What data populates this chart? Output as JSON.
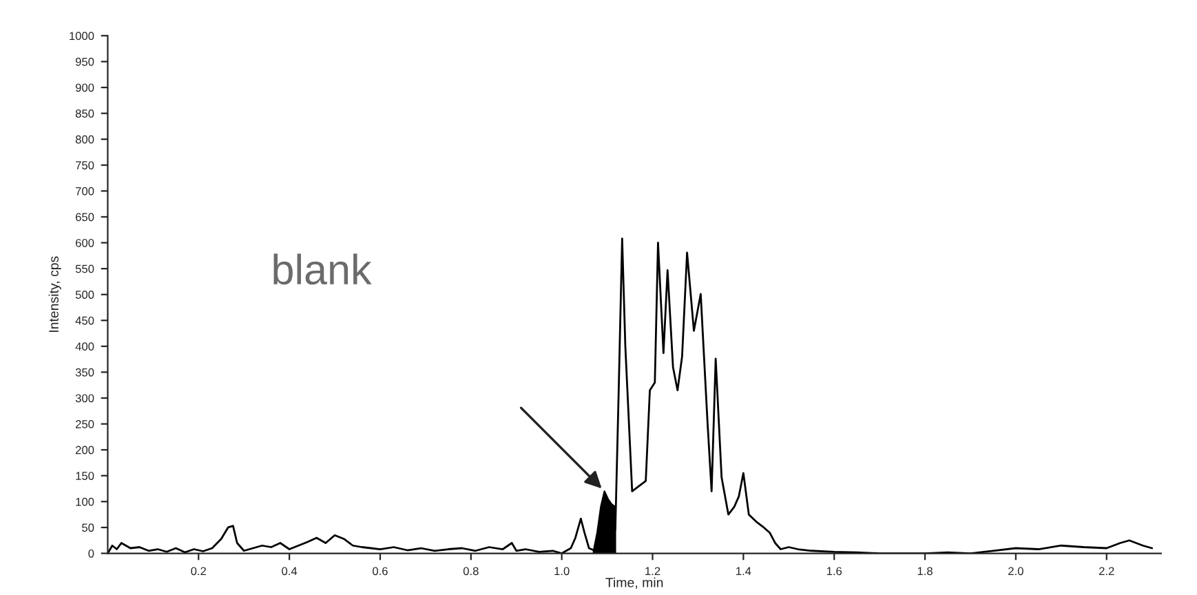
{
  "chart_data": {
    "type": "line",
    "xlabel": "Time, min",
    "ylabel": "Intensity, cps",
    "annotations": [
      "blank"
    ],
    "xlim": [
      0,
      2.32
    ],
    "ylim": [
      0,
      1000
    ],
    "xticks": [
      0.2,
      0.4,
      0.6,
      0.8,
      {
        "value": 1,
        "label": "1.0"
      },
      1.2,
      1.4,
      1.6,
      1.8,
      {
        "value": 2,
        "label": "2.0"
      },
      2.2
    ],
    "yticks": [
      0,
      50,
      100,
      150,
      200,
      250,
      300,
      350,
      400,
      450,
      500,
      550,
      600,
      650,
      700,
      750,
      800,
      850,
      900,
      950,
      1000
    ],
    "grid": false,
    "legend": false,
    "series": [
      {
        "color": "#000000",
        "x": [
          0.0,
          0.01,
          0.02,
          0.03,
          0.05,
          0.07,
          0.09,
          0.11,
          0.13,
          0.15,
          0.17,
          0.19,
          0.21,
          0.23,
          0.25,
          0.265,
          0.276,
          0.285,
          0.3,
          0.32,
          0.34,
          0.36,
          0.38,
          0.4,
          0.42,
          0.44,
          0.46,
          0.48,
          0.5,
          0.52,
          0.54,
          0.56,
          0.58,
          0.6,
          0.63,
          0.66,
          0.69,
          0.72,
          0.75,
          0.78,
          0.81,
          0.84,
          0.87,
          0.89,
          0.9,
          0.92,
          0.95,
          0.98,
          1.0,
          1.02,
          1.03,
          1.042,
          1.05,
          1.06,
          1.073,
          1.09,
          1.11,
          1.118,
          1.125,
          1.133,
          1.14,
          1.155,
          1.17,
          1.185,
          1.194,
          1.205,
          1.212,
          1.224,
          1.233,
          1.245,
          1.255,
          1.265,
          1.276,
          1.291,
          1.306,
          1.321,
          1.33,
          1.339,
          1.352,
          1.367,
          1.38,
          1.39,
          1.4,
          1.412,
          1.43,
          1.445,
          1.458,
          1.47,
          1.482,
          1.5,
          1.52,
          1.55,
          1.6,
          1.65,
          1.7,
          1.75,
          1.8,
          1.85,
          1.9,
          1.95,
          2.0,
          2.05,
          2.1,
          2.15,
          2.2,
          2.23,
          2.25,
          2.28,
          2.3
        ],
        "values": [
          0,
          15,
          8,
          20,
          10,
          12,
          5,
          8,
          3,
          10,
          2,
          8,
          4,
          10,
          28,
          50,
          53,
          20,
          5,
          10,
          15,
          12,
          20,
          8,
          15,
          22,
          30,
          20,
          35,
          28,
          15,
          12,
          10,
          8,
          12,
          6,
          10,
          5,
          8,
          10,
          5,
          12,
          8,
          20,
          5,
          8,
          3,
          5,
          0,
          10,
          30,
          67,
          40,
          10,
          5,
          8,
          10,
          48,
          300,
          608,
          400,
          120,
          130,
          140,
          315,
          330,
          600,
          387,
          547,
          360,
          315,
          380,
          581,
          430,
          501,
          253,
          120,
          376,
          147,
          75,
          90,
          110,
          155,
          75,
          60,
          50,
          40,
          20,
          8,
          12,
          8,
          5,
          3,
          2,
          0,
          0,
          0,
          2,
          0,
          5,
          10,
          8,
          15,
          12,
          10,
          20,
          25,
          15,
          10
        ]
      },
      {
        "type": "area",
        "color": "#000000",
        "x": [
          1.07,
          1.078,
          1.086,
          1.094,
          1.102,
          1.11,
          1.118
        ],
        "values": [
          5,
          40,
          90,
          120,
          105,
          95,
          90
        ]
      }
    ]
  }
}
